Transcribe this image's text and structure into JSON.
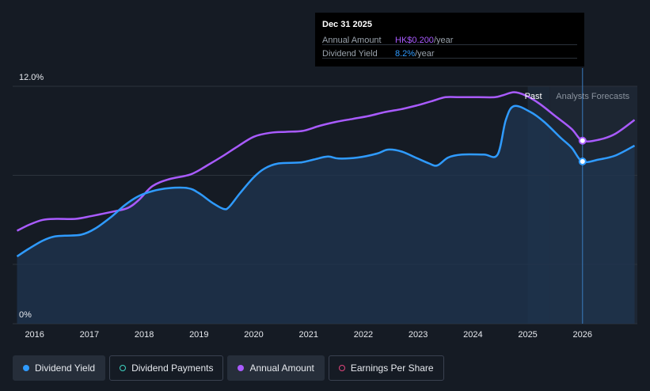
{
  "tooltip": {
    "date": "Dec 31 2025",
    "rows": [
      {
        "label": "Annual Amount",
        "value": "HK$0.200",
        "unit": "/year"
      },
      {
        "label": "Dividend Yield",
        "value": "8.2%",
        "unit": "/year"
      }
    ]
  },
  "regions": {
    "past": "Past",
    "forecast": "Analysts Forecasts"
  },
  "legend": [
    {
      "label": "Dividend Yield",
      "color": "#2f9bff",
      "style": "filled",
      "active": true
    },
    {
      "label": "Dividend Payments",
      "color": "#3fd4c2",
      "style": "hollow",
      "active": false
    },
    {
      "label": "Annual Amount",
      "color": "#a95bff",
      "style": "filled",
      "active": true
    },
    {
      "label": "Earnings Per Share",
      "color": "#e0467c",
      "style": "hollow",
      "active": false
    }
  ],
  "colors": {
    "yield": "#2f9bff",
    "amount": "#a95bff",
    "background": "#151b24"
  },
  "chart_data": {
    "type": "line",
    "title": "",
    "xlabel": "",
    "ylabel": "",
    "x_ticks": [
      "2016",
      "2017",
      "2018",
      "2019",
      "2020",
      "2021",
      "2022",
      "2023",
      "2024",
      "2025",
      "2026"
    ],
    "y_ticks": [
      "0%",
      "12.0%"
    ],
    "xlim": [
      2015.6,
      2027.0
    ],
    "ylim": [
      0,
      12
    ],
    "grid": true,
    "past_end": 2025.0,
    "forecast_start": 2025.4,
    "highlight_x": 2026.0,
    "series": [
      {
        "name": "Dividend Yield",
        "unit": "%",
        "points": [
          [
            2015.68,
            3.4
          ],
          [
            2015.9,
            3.8
          ],
          [
            2016.15,
            4.2
          ],
          [
            2016.35,
            4.4
          ],
          [
            2016.55,
            4.45
          ],
          [
            2016.85,
            4.5
          ],
          [
            2017.1,
            4.8
          ],
          [
            2017.4,
            5.4
          ],
          [
            2017.65,
            6.0
          ],
          [
            2017.9,
            6.45
          ],
          [
            2018.15,
            6.7
          ],
          [
            2018.45,
            6.85
          ],
          [
            2018.8,
            6.85
          ],
          [
            2019.0,
            6.6
          ],
          [
            2019.25,
            6.1
          ],
          [
            2019.45,
            5.8
          ],
          [
            2019.55,
            5.9
          ],
          [
            2019.75,
            6.6
          ],
          [
            2020.0,
            7.4
          ],
          [
            2020.2,
            7.85
          ],
          [
            2020.45,
            8.1
          ],
          [
            2020.85,
            8.15
          ],
          [
            2021.1,
            8.3
          ],
          [
            2021.35,
            8.45
          ],
          [
            2021.55,
            8.35
          ],
          [
            2021.9,
            8.4
          ],
          [
            2022.25,
            8.6
          ],
          [
            2022.45,
            8.8
          ],
          [
            2022.7,
            8.7
          ],
          [
            2022.95,
            8.4
          ],
          [
            2023.2,
            8.1
          ],
          [
            2023.35,
            8.0
          ],
          [
            2023.55,
            8.4
          ],
          [
            2023.8,
            8.55
          ],
          [
            2024.2,
            8.55
          ],
          [
            2024.45,
            8.55
          ],
          [
            2024.6,
            10.3
          ],
          [
            2024.75,
            11.0
          ],
          [
            2025.05,
            10.7
          ],
          [
            2025.3,
            10.2
          ],
          [
            2025.6,
            9.4
          ],
          [
            2025.8,
            8.9
          ],
          [
            2026.0,
            8.2
          ],
          [
            2026.3,
            8.3
          ],
          [
            2026.6,
            8.5
          ],
          [
            2026.95,
            9.0
          ]
        ]
      },
      {
        "name": "Annual Amount",
        "unit": "HK$",
        "points": [
          [
            2015.68,
            4.7
          ],
          [
            2015.9,
            5.0
          ],
          [
            2016.15,
            5.25
          ],
          [
            2016.4,
            5.3
          ],
          [
            2016.75,
            5.3
          ],
          [
            2017.05,
            5.45
          ],
          [
            2017.4,
            5.65
          ],
          [
            2017.7,
            5.85
          ],
          [
            2017.9,
            6.25
          ],
          [
            2018.15,
            6.95
          ],
          [
            2018.45,
            7.3
          ],
          [
            2018.85,
            7.55
          ],
          [
            2019.15,
            8.0
          ],
          [
            2019.45,
            8.5
          ],
          [
            2019.7,
            8.95
          ],
          [
            2020.0,
            9.45
          ],
          [
            2020.3,
            9.65
          ],
          [
            2020.6,
            9.7
          ],
          [
            2020.9,
            9.75
          ],
          [
            2021.2,
            10.0
          ],
          [
            2021.5,
            10.2
          ],
          [
            2021.8,
            10.35
          ],
          [
            2022.1,
            10.5
          ],
          [
            2022.4,
            10.7
          ],
          [
            2022.7,
            10.85
          ],
          [
            2023.0,
            11.05
          ],
          [
            2023.25,
            11.25
          ],
          [
            2023.5,
            11.45
          ],
          [
            2023.75,
            11.45
          ],
          [
            2024.1,
            11.45
          ],
          [
            2024.4,
            11.45
          ],
          [
            2024.55,
            11.55
          ],
          [
            2024.75,
            11.7
          ],
          [
            2024.95,
            11.55
          ],
          [
            2025.2,
            11.15
          ],
          [
            2025.5,
            10.5
          ],
          [
            2025.8,
            9.85
          ],
          [
            2026.0,
            9.25
          ],
          [
            2026.3,
            9.3
          ],
          [
            2026.6,
            9.6
          ],
          [
            2026.95,
            10.3
          ]
        ]
      }
    ]
  }
}
